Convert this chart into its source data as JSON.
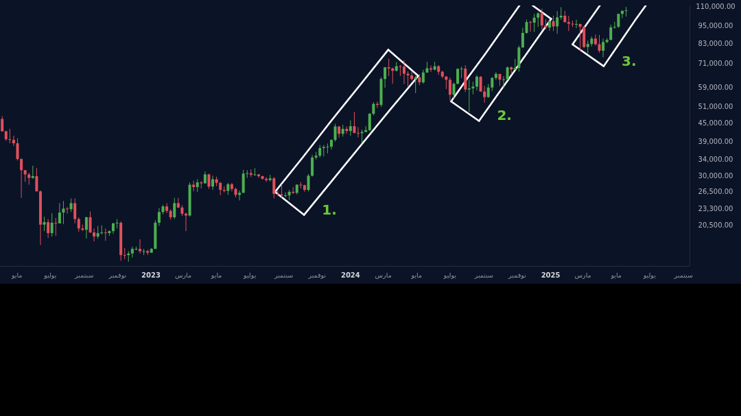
{
  "chart_data": {
    "type": "candlestick",
    "log": true,
    "xlim": [
      "2022-03-31",
      "2025-09-12"
    ],
    "xticks": [
      {
        "value": "2022-05-01",
        "label": "مايو"
      },
      {
        "value": "2022-07-01",
        "label": "يوليو"
      },
      {
        "value": "2022-09-01",
        "label": "سبتمبر"
      },
      {
        "value": "2022-11-01",
        "label": "نوفمبر"
      },
      {
        "value": "2023-01-01",
        "label": "2023"
      },
      {
        "value": "2023-03-01",
        "label": "مارس"
      },
      {
        "value": "2023-05-01",
        "label": "مايو"
      },
      {
        "value": "2023-07-01",
        "label": "يوليو"
      },
      {
        "value": "2023-09-01",
        "label": "سبتمبر"
      },
      {
        "value": "2023-11-01",
        "label": "نوفمبر"
      },
      {
        "value": "2024-01-01",
        "label": "2024"
      },
      {
        "value": "2024-03-01",
        "label": "مارس"
      },
      {
        "value": "2024-05-01",
        "label": "مايو"
      },
      {
        "value": "2024-07-01",
        "label": "يوليو"
      },
      {
        "value": "2024-09-01",
        "label": "سبتمبر"
      },
      {
        "value": "2024-11-01",
        "label": "نوفمبر"
      },
      {
        "value": "2025-01-01",
        "label": "2025"
      },
      {
        "value": "2025-03-01",
        "label": "مارس"
      },
      {
        "value": "2025-05-01",
        "label": "مايو"
      },
      {
        "value": "2025-07-01",
        "label": "يوليو"
      },
      {
        "value": "2025-09-01",
        "label": "سبتمبر"
      }
    ],
    "ylim": [
      15000,
      111000
    ],
    "yticks": [
      {
        "value": 110000,
        "label": "110,000.00"
      },
      {
        "value": 95000,
        "label": "95,000.00"
      },
      {
        "value": 83000,
        "label": "83,000.00"
      },
      {
        "value": 71000,
        "label": "71,000.00"
      },
      {
        "value": 59000,
        "label": "59,000.00"
      },
      {
        "value": 51000,
        "label": "51,000.00"
      },
      {
        "value": 45000,
        "label": "45,000.00"
      },
      {
        "value": 39000,
        "label": "39,000.00"
      },
      {
        "value": 34000,
        "label": "34,000.00"
      },
      {
        "value": 30000,
        "label": "30,000.00"
      },
      {
        "value": 26500,
        "label": "26,500.00"
      },
      {
        "value": 23300,
        "label": "23,300.00"
      },
      {
        "value": 20500,
        "label": "20,500.00"
      }
    ],
    "annotations": [
      "1.",
      "2.",
      "3."
    ],
    "series": [
      {
        "type": "line",
        "color": "#ffffff",
        "x": [
          "2023-08-16",
          "2023-10-07",
          "2023-11-27",
          "2024-01-18",
          "2024-03-10"
        ],
        "values": [
          26500,
          34800,
          45800,
          60100,
          79000
        ]
      },
      {
        "type": "line",
        "color": "#ffffff",
        "x": [
          "2023-10-08",
          "2023-11-29",
          "2024-01-20",
          "2024-03-12",
          "2024-05-04"
        ],
        "values": [
          22200,
          29000,
          37900,
          49500,
          64600
        ]
      },
      {
        "type": "line",
        "color": "#ffffff",
        "x": [
          "2023-08-16",
          "2023-10-08"
        ],
        "values": [
          26500,
          22200
        ]
      },
      {
        "type": "line",
        "color": "#ffffff",
        "x": [
          "2024-03-10",
          "2024-05-04"
        ],
        "values": [
          79000,
          64600
        ]
      },
      {
        "type": "line",
        "color": "#ffffff",
        "x": [
          "2024-07-03",
          "2024-08-03",
          "2024-09-04",
          "2024-10-05",
          "2024-11-05"
        ],
        "values": [
          53100,
          63900,
          76800,
          92300,
          111000
        ]
      },
      {
        "type": "line",
        "color": "#ffffff",
        "x": [
          "2024-08-23",
          "2024-09-25",
          "2024-10-28",
          "2024-11-30",
          "2025-01-02"
        ],
        "values": [
          45700,
          55600,
          67600,
          82300,
          100100
        ]
      },
      {
        "type": "line",
        "color": "#ffffff",
        "x": [
          "2024-07-03",
          "2024-08-23"
        ],
        "values": [
          53100,
          45700
        ]
      },
      {
        "type": "line",
        "color": "#ffffff",
        "x": [
          "2024-11-29",
          "2025-01-02"
        ],
        "values": [
          111000,
          100100
        ]
      },
      {
        "type": "line",
        "color": "#ffffff",
        "x": [
          "2025-02-10",
          "2025-03-07",
          "2025-04-01"
        ],
        "values": [
          82300,
          95600,
          111000
        ]
      },
      {
        "type": "line",
        "color": "#ffffff",
        "x": [
          "2025-04-08",
          "2025-04-27",
          "2025-05-16",
          "2025-06-04",
          "2025-06-24"
        ],
        "values": [
          69600,
          78200,
          87900,
          98800,
          111000
        ]
      },
      {
        "type": "line",
        "color": "#ffffff",
        "x": [
          "2025-02-10",
          "2025-04-08"
        ],
        "values": [
          82300,
          69600
        ]
      }
    ],
    "x": [
      "2022-04-04",
      "2022-04-11",
      "2022-04-18",
      "2022-04-25",
      "2022-05-02",
      "2022-05-09",
      "2022-05-16",
      "2022-05-23",
      "2022-05-30",
      "2022-06-06",
      "2022-06-13",
      "2022-06-20",
      "2022-06-27",
      "2022-07-04",
      "2022-07-11",
      "2022-07-18",
      "2022-07-25",
      "2022-08-01",
      "2022-08-08",
      "2022-08-15",
      "2022-08-22",
      "2022-08-29",
      "2022-09-05",
      "2022-09-12",
      "2022-09-19",
      "2022-09-26",
      "2022-10-03",
      "2022-10-10",
      "2022-10-17",
      "2022-10-24",
      "2022-10-31",
      "2022-11-07",
      "2022-11-14",
      "2022-11-21",
      "2022-11-28",
      "2022-12-05",
      "2022-12-12",
      "2022-12-19",
      "2022-12-26",
      "2023-01-02",
      "2023-01-09",
      "2023-01-16",
      "2023-01-23",
      "2023-01-30",
      "2023-02-06",
      "2023-02-13",
      "2023-02-20",
      "2023-02-27",
      "2023-03-06",
      "2023-03-13",
      "2023-03-20",
      "2023-03-27",
      "2023-04-03",
      "2023-04-10",
      "2023-04-17",
      "2023-04-24",
      "2023-05-01",
      "2023-05-08",
      "2023-05-15",
      "2023-05-22",
      "2023-05-29",
      "2023-06-05",
      "2023-06-12",
      "2023-06-19",
      "2023-06-26",
      "2023-07-03",
      "2023-07-10",
      "2023-07-17",
      "2023-07-24",
      "2023-07-31",
      "2023-08-07",
      "2023-08-14",
      "2023-08-21",
      "2023-08-28",
      "2023-09-04",
      "2023-09-11",
      "2023-09-18",
      "2023-09-25",
      "2023-10-02",
      "2023-10-09",
      "2023-10-16",
      "2023-10-23",
      "2023-10-30",
      "2023-11-06",
      "2023-11-13",
      "2023-11-20",
      "2023-11-27",
      "2023-12-04",
      "2023-12-11",
      "2023-12-18",
      "2023-12-25",
      "2024-01-01",
      "2024-01-08",
      "2024-01-15",
      "2024-01-22",
      "2024-01-29",
      "2024-02-05",
      "2024-02-12",
      "2024-02-19",
      "2024-02-26",
      "2024-03-04",
      "2024-03-11",
      "2024-03-18",
      "2024-03-25",
      "2024-04-01",
      "2024-04-08",
      "2024-04-15",
      "2024-04-22",
      "2024-04-29",
      "2024-05-06",
      "2024-05-13",
      "2024-05-20",
      "2024-05-27",
      "2024-06-03",
      "2024-06-10",
      "2024-06-17",
      "2024-06-24",
      "2024-07-01",
      "2024-07-08",
      "2024-07-15",
      "2024-07-22",
      "2024-07-29",
      "2024-08-05",
      "2024-08-12",
      "2024-08-19",
      "2024-08-26",
      "2024-09-02",
      "2024-09-09",
      "2024-09-16",
      "2024-09-23",
      "2024-09-30",
      "2024-10-07",
      "2024-10-14",
      "2024-10-21",
      "2024-10-28",
      "2024-11-04",
      "2024-11-11",
      "2024-11-18",
      "2024-11-25",
      "2024-12-02",
      "2024-12-09",
      "2024-12-16",
      "2024-12-23",
      "2024-12-30",
      "2025-01-06",
      "2025-01-13",
      "2025-01-20",
      "2025-01-27",
      "2025-02-03",
      "2025-02-10",
      "2025-02-17",
      "2025-02-24",
      "2025-03-03",
      "2025-03-10",
      "2025-03-17",
      "2025-03-24",
      "2025-03-31",
      "2025-04-07",
      "2025-04-14",
      "2025-04-21",
      "2025-04-28",
      "2025-05-05",
      "2025-05-12",
      "2025-05-19"
    ],
    "ohlc": [
      [
        46400,
        47400,
        42100,
        42200
      ],
      [
        42200,
        42400,
        39200,
        39700
      ],
      [
        39700,
        43000,
        38500,
        39500
      ],
      [
        39500,
        40800,
        37700,
        38500
      ],
      [
        38500,
        40000,
        33700,
        34100
      ],
      [
        34100,
        34300,
        25300,
        31300
      ],
      [
        31300,
        31300,
        28600,
        30300
      ],
      [
        30300,
        30700,
        28000,
        29500
      ],
      [
        29500,
        32400,
        29300,
        29900
      ],
      [
        29900,
        31800,
        26600,
        26600
      ],
      [
        26600,
        26800,
        17600,
        20600
      ],
      [
        20600,
        21900,
        19600,
        21000
      ],
      [
        21000,
        21500,
        18600,
        19300
      ],
      [
        19300,
        22500,
        18800,
        20900
      ],
      [
        20900,
        21700,
        18900,
        20800
      ],
      [
        20800,
        24300,
        20800,
        22600
      ],
      [
        22600,
        24700,
        20700,
        23300
      ],
      [
        23300,
        23600,
        22400,
        23200
      ],
      [
        23200,
        25200,
        22700,
        24300
      ],
      [
        24300,
        25200,
        20800,
        21500
      ],
      [
        21500,
        21800,
        19500,
        20000
      ],
      [
        20000,
        20600,
        19600,
        19800
      ],
      [
        19800,
        21900,
        18500,
        21800
      ],
      [
        21800,
        22800,
        19300,
        19400
      ],
      [
        19400,
        20000,
        18100,
        18800
      ],
      [
        18800,
        20400,
        18500,
        19300
      ],
      [
        19300,
        20500,
        19100,
        19400
      ],
      [
        19400,
        20000,
        18200,
        19300
      ],
      [
        19300,
        19700,
        18900,
        19600
      ],
      [
        19600,
        20900,
        19200,
        20800
      ],
      [
        20800,
        21500,
        20000,
        20900
      ],
      [
        20900,
        21100,
        15600,
        16300
      ],
      [
        16300,
        17200,
        15800,
        16300
      ],
      [
        16300,
        16800,
        15500,
        16500
      ],
      [
        16500,
        17400,
        16000,
        17100
      ],
      [
        17100,
        17400,
        16900,
        17100
      ],
      [
        17100,
        18400,
        16500,
        16800
      ],
      [
        16800,
        17100,
        16300,
        16800
      ],
      [
        16800,
        17000,
        16300,
        16600
      ],
      [
        16600,
        17200,
        16600,
        17100
      ],
      [
        17100,
        21300,
        17100,
        20900
      ],
      [
        20900,
        23400,
        20400,
        22700
      ],
      [
        22700,
        24000,
        22300,
        23700
      ],
      [
        23700,
        24300,
        22500,
        22900
      ],
      [
        22900,
        23200,
        21400,
        21800
      ],
      [
        21800,
        25300,
        21500,
        24300
      ],
      [
        24300,
        25300,
        23400,
        23500
      ],
      [
        23500,
        23900,
        22000,
        22400
      ],
      [
        22400,
        22600,
        19600,
        22100
      ],
      [
        22100,
        28500,
        21900,
        28000
      ],
      [
        28000,
        28900,
        26600,
        27500
      ],
      [
        27500,
        29200,
        26500,
        28500
      ],
      [
        28500,
        28800,
        27200,
        28300
      ],
      [
        28300,
        31000,
        28200,
        30300
      ],
      [
        30300,
        30500,
        27100,
        27600
      ],
      [
        27600,
        30000,
        26900,
        29200
      ],
      [
        29200,
        29800,
        27700,
        28400
      ],
      [
        28400,
        28600,
        25800,
        26900
      ],
      [
        26900,
        27700,
        26400,
        26700
      ],
      [
        26700,
        28400,
        25900,
        28100
      ],
      [
        28100,
        28400,
        26600,
        27100
      ],
      [
        27100,
        27400,
        25400,
        25900
      ],
      [
        25900,
        26800,
        24800,
        26300
      ],
      [
        26300,
        31400,
        26300,
        30500
      ],
      [
        30500,
        31300,
        29500,
        30600
      ],
      [
        30600,
        31500,
        29700,
        30200
      ],
      [
        30200,
        31800,
        30000,
        30300
      ],
      [
        30300,
        30400,
        29500,
        29900
      ],
      [
        29900,
        30000,
        29100,
        29300
      ],
      [
        29300,
        29700,
        28600,
        29000
      ],
      [
        29000,
        30200,
        28700,
        29400
      ],
      [
        29400,
        29700,
        25200,
        26100
      ],
      [
        26100,
        26800,
        25800,
        26000
      ],
      [
        26000,
        28100,
        25300,
        25800
      ],
      [
        25800,
        26400,
        25400,
        25800
      ],
      [
        25800,
        26900,
        24900,
        26500
      ],
      [
        26500,
        27500,
        26100,
        26300
      ],
      [
        26300,
        28100,
        26000,
        28000
      ],
      [
        28000,
        28600,
        27200,
        27900
      ],
      [
        27900,
        28000,
        26500,
        26900
      ],
      [
        26900,
        30400,
        26600,
        30000
      ],
      [
        30000,
        35200,
        29800,
        34500
      ],
      [
        34500,
        36000,
        34000,
        35000
      ],
      [
        35000,
        38000,
        34500,
        37100
      ],
      [
        37100,
        38000,
        34800,
        37400
      ],
      [
        37400,
        38400,
        35600,
        37500
      ],
      [
        37500,
        39700,
        36700,
        39500
      ],
      [
        39500,
        44700,
        39000,
        43800
      ],
      [
        43800,
        43900,
        40200,
        41400
      ],
      [
        41400,
        44400,
        40500,
        43000
      ],
      [
        43000,
        43800,
        41400,
        42300
      ],
      [
        42300,
        45900,
        40800,
        43900
      ],
      [
        43900,
        49000,
        41500,
        41700
      ],
      [
        41700,
        43600,
        40300,
        41600
      ],
      [
        41600,
        42800,
        38600,
        42000
      ],
      [
        42000,
        43900,
        41900,
        42600
      ],
      [
        42600,
        48600,
        42300,
        48300
      ],
      [
        48300,
        52800,
        47700,
        52100
      ],
      [
        52100,
        53000,
        50500,
        51700
      ],
      [
        51700,
        64000,
        50900,
        63100
      ],
      [
        63100,
        69200,
        59000,
        69000
      ],
      [
        69000,
        73800,
        64500,
        68400
      ],
      [
        68400,
        68900,
        60800,
        67200
      ],
      [
        67200,
        71800,
        66900,
        69600
      ],
      [
        69600,
        70300,
        64500,
        69400
      ],
      [
        69400,
        72800,
        60700,
        65700
      ],
      [
        65700,
        66900,
        59600,
        64900
      ],
      [
        64900,
        67200,
        62400,
        63100
      ],
      [
        63100,
        64700,
        56600,
        63900
      ],
      [
        63900,
        65500,
        60200,
        61500
      ],
      [
        61500,
        67700,
        60800,
        66300
      ],
      [
        66300,
        72000,
        66100,
        68500
      ],
      [
        68500,
        70000,
        66600,
        67800
      ],
      [
        67800,
        72000,
        67400,
        69600
      ],
      [
        69600,
        70200,
        65100,
        66700
      ],
      [
        66700,
        67300,
        63400,
        64300
      ],
      [
        64300,
        64500,
        58400,
        62700
      ],
      [
        62700,
        63800,
        53500,
        55900
      ],
      [
        55900,
        61400,
        54300,
        60800
      ],
      [
        60800,
        68400,
        60600,
        68200
      ],
      [
        68200,
        69400,
        63500,
        68300
      ],
      [
        68300,
        70100,
        57100,
        58200
      ],
      [
        58200,
        62800,
        49000,
        58700
      ],
      [
        58700,
        61800,
        56100,
        59500
      ],
      [
        59500,
        65000,
        57800,
        64200
      ],
      [
        64200,
        64500,
        57200,
        57300
      ],
      [
        57300,
        59800,
        52600,
        54900
      ],
      [
        54900,
        60700,
        54600,
        59100
      ],
      [
        59100,
        64100,
        57500,
        63600
      ],
      [
        63600,
        66500,
        62700,
        65600
      ],
      [
        65600,
        65600,
        59800,
        62800
      ],
      [
        62800,
        64500,
        58900,
        62900
      ],
      [
        62900,
        69400,
        62500,
        69000
      ],
      [
        69000,
        69500,
        65300,
        67900
      ],
      [
        67900,
        73600,
        67500,
        68700
      ],
      [
        68700,
        81500,
        66800,
        80400
      ],
      [
        80400,
        93500,
        80200,
        89900
      ],
      [
        89900,
        99600,
        89400,
        97700
      ],
      [
        97700,
        98700,
        90800,
        97300
      ],
      [
        97300,
        104100,
        90500,
        101100
      ],
      [
        101100,
        105300,
        94200,
        104500
      ],
      [
        104500,
        108400,
        92200,
        95200
      ],
      [
        95200,
        100000,
        92500,
        93700
      ],
      [
        93700,
        99000,
        91500,
        98400
      ],
      [
        98400,
        102700,
        91200,
        94500
      ],
      [
        94500,
        106400,
        89300,
        101300
      ],
      [
        101300,
        109600,
        99500,
        102600
      ],
      [
        102600,
        106500,
        97200,
        97700
      ],
      [
        97700,
        102500,
        91200,
        96500
      ],
      [
        96500,
        98800,
        94100,
        96100
      ],
      [
        96100,
        99500,
        93300,
        96300
      ],
      [
        96300,
        96500,
        78300,
        94300
      ],
      [
        94300,
        95000,
        80000,
        80700
      ],
      [
        80700,
        84700,
        76600,
        82600
      ],
      [
        82600,
        87500,
        81100,
        86100
      ],
      [
        86100,
        88800,
        81600,
        82400
      ],
      [
        82400,
        88500,
        77200,
        78400
      ],
      [
        78400,
        86100,
        74500,
        83800
      ],
      [
        83800,
        86400,
        83100,
        85200
      ],
      [
        85200,
        95800,
        85100,
        93800
      ],
      [
        93800,
        97900,
        92800,
        94300
      ],
      [
        94300,
        104100,
        93400,
        104100
      ],
      [
        104100,
        107100,
        100700,
        106500
      ],
      [
        106500,
        109800,
        102000,
        106900
      ]
    ],
    "colors": [
      "#e0505c",
      "#e0505c",
      "#e0505c",
      "#e0505c",
      "#e0505c",
      "#e0505c",
      "#e0505c",
      "#e0505c",
      "#4caf50",
      "#e0505c",
      "#e0505c",
      "#4caf50",
      "#e0505c",
      "#4caf50",
      "#e0505c",
      "#4caf50",
      "#4caf50",
      "#e0505c",
      "#4caf50",
      "#e0505c",
      "#e0505c",
      "#e0505c",
      "#4caf50",
      "#e0505c",
      "#e0505c",
      "#4caf50",
      "#4caf50",
      "#e0505c",
      "#4caf50",
      "#4caf50",
      "#4caf50",
      "#e0505c",
      "#e0505c",
      "#4caf50",
      "#4caf50",
      "#4caf50",
      "#e0505c",
      "#4caf50",
      "#e0505c",
      "#4caf50",
      "#4caf50",
      "#4caf50",
      "#4caf50",
      "#e0505c",
      "#e0505c",
      "#4caf50",
      "#e0505c",
      "#e0505c",
      "#e0505c",
      "#4caf50",
      "#e0505c",
      "#4caf50",
      "#e0505c",
      "#4caf50",
      "#e0505c",
      "#4caf50",
      "#e0505c",
      "#e0505c",
      "#e0505c",
      "#4caf50",
      "#e0505c",
      "#e0505c",
      "#4caf50",
      "#4caf50",
      "#4caf50",
      "#e0505c",
      "#4caf50",
      "#e0505c",
      "#e0505c",
      "#e0505c",
      "#4caf50",
      "#e0505c",
      "#e0505c",
      "#e0505c",
      "#4caf50",
      "#4caf50",
      "#e0505c",
      "#4caf50",
      "#e0505c",
      "#e0505c",
      "#4caf50",
      "#4caf50",
      "#4caf50",
      "#4caf50",
      "#4caf50",
      "#4caf50",
      "#4caf50",
      "#4caf50",
      "#e0505c",
      "#4caf50",
      "#e0505c",
      "#4caf50",
      "#e0505c",
      "#e0505c",
      "#4caf50",
      "#4caf50",
      "#4caf50",
      "#4caf50",
      "#e0505c",
      "#4caf50",
      "#4caf50",
      "#e0505c",
      "#e0505c",
      "#4caf50",
      "#e0505c",
      "#e0505c",
      "#e0505c",
      "#e0505c",
      "#4caf50",
      "#e0505c",
      "#4caf50",
      "#4caf50",
      "#e0505c",
      "#4caf50",
      "#e0505c",
      "#e0505c",
      "#e0505c",
      "#e0505c",
      "#4caf50",
      "#4caf50",
      "#4caf50",
      "#e0505c",
      "#4caf50",
      "#4caf50",
      "#4caf50",
      "#e0505c",
      "#e0505c",
      "#4caf50",
      "#4caf50",
      "#4caf50",
      "#e0505c",
      "#4caf50",
      "#4caf50",
      "#e0505c",
      "#4caf50",
      "#4caf50",
      "#4caf50",
      "#4caf50",
      "#e0505c",
      "#4caf50",
      "#4caf50",
      "#e0505c",
      "#e0505c",
      "#4caf50",
      "#e0505c",
      "#4caf50",
      "#4caf50",
      "#e0505c",
      "#e0505c",
      "#e0505c",
      "#4caf50",
      "#e0505c",
      "#e0505c",
      "#4caf50",
      "#4caf50",
      "#e0505c",
      "#e0505c",
      "#4caf50",
      "#4caf50",
      "#4caf50",
      "#4caf50",
      "#4caf50",
      "#4caf50",
      "#4caf50"
    ]
  }
}
